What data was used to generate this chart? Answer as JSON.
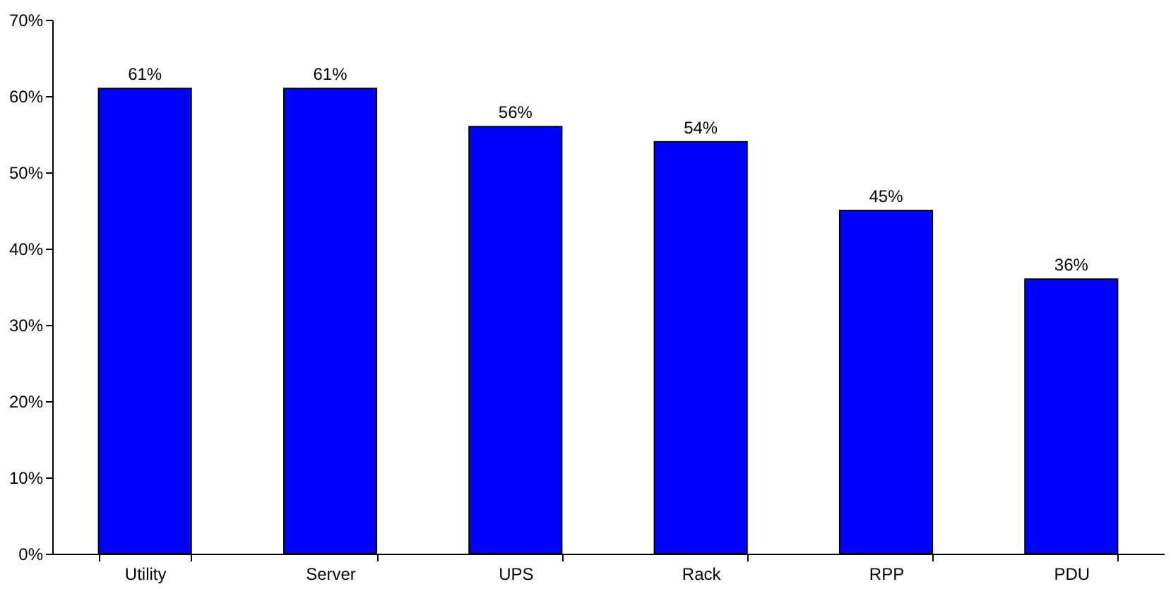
{
  "chart_data": {
    "type": "bar",
    "categories": [
      "Utility",
      "Server",
      "UPS",
      "Rack",
      "RPP",
      "PDU"
    ],
    "values": [
      61,
      61,
      56,
      54,
      45,
      36
    ],
    "value_labels": [
      "61%",
      "61%",
      "56%",
      "54%",
      "45%",
      "36%"
    ],
    "color": "#0000ff",
    "ylim": [
      0,
      70
    ],
    "yticks": [
      {
        "value": 0,
        "label": "0%"
      },
      {
        "value": 10,
        "label": "10%"
      },
      {
        "value": 20,
        "label": "20%"
      },
      {
        "value": 30,
        "label": "30%"
      },
      {
        "value": 40,
        "label": "40%"
      },
      {
        "value": 50,
        "label": "50%"
      },
      {
        "value": 60,
        "label": "60%"
      },
      {
        "value": 70,
        "label": "70%"
      }
    ],
    "grid": false
  }
}
